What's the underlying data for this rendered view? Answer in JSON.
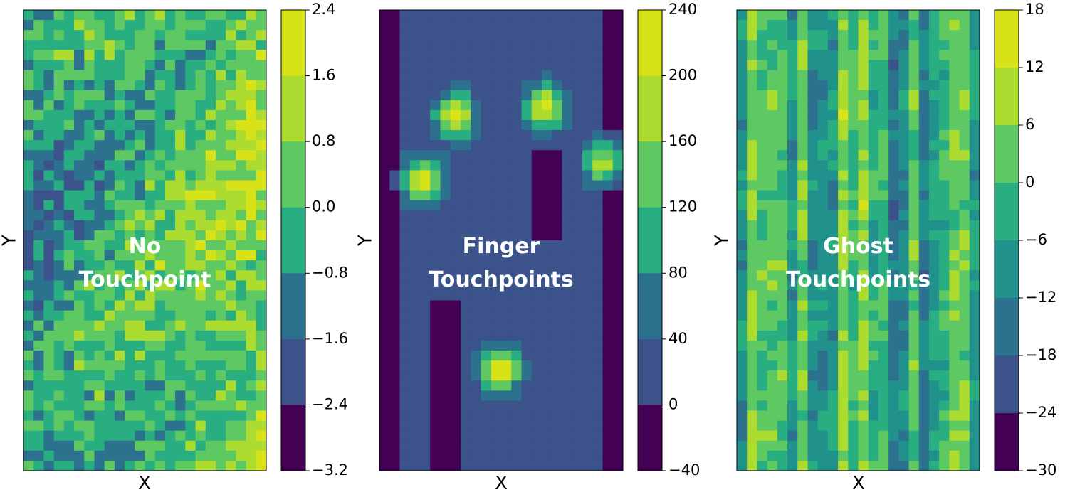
{
  "colormap": [
    "#440154",
    "#3b528b",
    "#2c728e",
    "#21918c",
    "#28ae80",
    "#5ec962",
    "#addc30",
    "#d8e219"
  ],
  "chart_data": [
    {
      "type": "heatmap",
      "overlay_lines": [
        "No",
        "Touchpoint"
      ],
      "xlabel": "X",
      "ylabel": "Y",
      "colorbar_ticks": [
        "2.4",
        "1.6",
        "0.8",
        "0.0",
        "−0.8",
        "−1.6",
        "−2.4",
        "−3.2"
      ],
      "levels": [
        -3.2,
        -2.4,
        -1.6,
        -0.8,
        0.0,
        0.8,
        1.6,
        2.4
      ],
      "seed": 7,
      "pattern": "noise",
      "peaks": []
    },
    {
      "type": "heatmap",
      "overlay_lines": [
        "Finger",
        "Touchpoints"
      ],
      "xlabel": "X",
      "ylabel": "Y",
      "colorbar_ticks": [
        "240",
        "200",
        "160",
        "120",
        "80",
        "40",
        "0",
        "−40"
      ],
      "levels": [
        -40,
        0,
        40,
        80,
        120,
        160,
        200,
        240
      ],
      "seed": 13,
      "pattern": "fingers",
      "peaks": [
        {
          "cx": 0.31,
          "cy": 0.23,
          "amp": 210
        },
        {
          "cx": 0.68,
          "cy": 0.21,
          "amp": 205
        },
        {
          "cx": 0.93,
          "cy": 0.33,
          "amp": 190
        },
        {
          "cx": 0.18,
          "cy": 0.37,
          "amp": 215
        },
        {
          "cx": 0.5,
          "cy": 0.78,
          "amp": 225
        }
      ]
    },
    {
      "type": "heatmap",
      "overlay_lines": [
        "Ghost",
        "Touchpoints"
      ],
      "xlabel": "X",
      "ylabel": "Y",
      "colorbar_ticks": [
        "18",
        "12",
        "6",
        "0",
        "−6",
        "−12",
        "−18",
        "−24",
        "−30"
      ],
      "levels": [
        -30,
        -24,
        -18,
        -12,
        -6,
        0,
        6,
        12,
        18
      ],
      "seed": 29,
      "pattern": "stripes",
      "peaks": []
    }
  ]
}
